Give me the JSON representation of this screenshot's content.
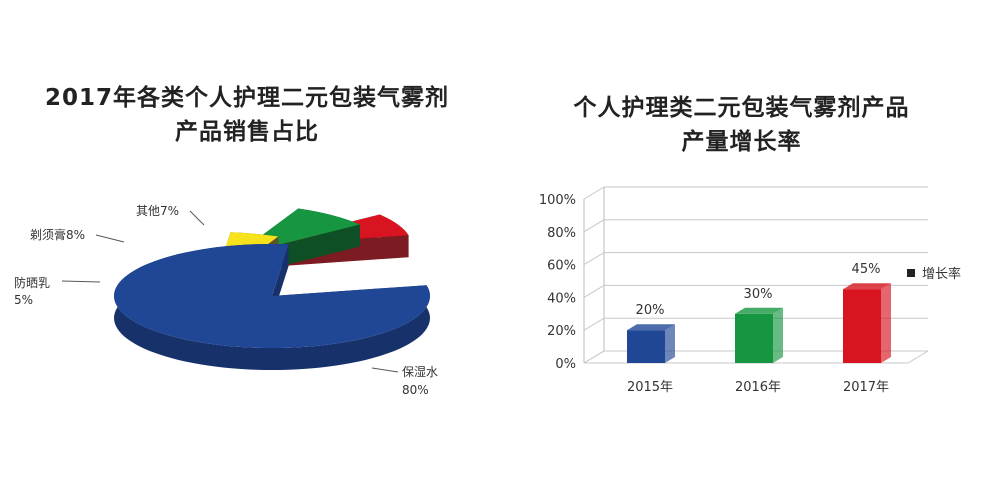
{
  "chart_data": [
    {
      "type": "pie",
      "title": "2017年各类个人护理二元包装气雾剂",
      "subtitle": "产品销售占比",
      "slices": [
        {
          "label": "保湿水",
          "value": 80,
          "value_label": "80%",
          "color": "#1f4796",
          "side_color": "#17316a"
        },
        {
          "label": "防晒乳",
          "value": 5,
          "value_label": "5%",
          "color": "#f7e31b",
          "side_color": "#5d5523"
        },
        {
          "label": "剃须膏",
          "value": 8,
          "value_label": "8%",
          "color": "#169640",
          "side_color": "#0f4f25"
        },
        {
          "label": "其他",
          "value": 7,
          "value_label": "7%",
          "color": "#d7141f",
          "side_color": "#7c1b22"
        }
      ]
    },
    {
      "type": "bar",
      "title": "个人护理类二元包装气雾剂产品",
      "subtitle": "产量增长率",
      "categories": [
        "2015年",
        "2016年",
        "2017年"
      ],
      "series": [
        {
          "name": "增长率",
          "values": [
            20,
            30,
            45
          ],
          "value_labels": [
            "20%",
            "30%",
            "45%"
          ],
          "colors": [
            "#1f4796",
            "#169640",
            "#d7141f"
          ]
        }
      ],
      "ylim": [
        0,
        100
      ],
      "yticks": [
        "0%",
        "20%",
        "40%",
        "60%",
        "80%",
        "100%"
      ],
      "grid": true,
      "legend": "right"
    }
  ]
}
